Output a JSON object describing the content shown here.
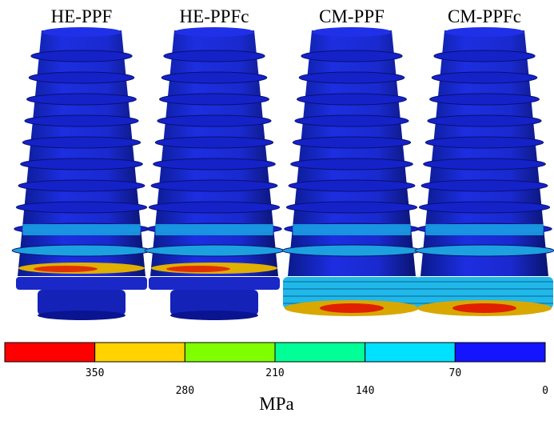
{
  "panels": [
    {
      "label": "HE-PPF"
    },
    {
      "label": "HE-PPFc"
    },
    {
      "label": "CM-PPF"
    },
    {
      "label": "CM-PPFc"
    }
  ],
  "colorbar": {
    "colors": [
      "#ff0000",
      "#ffd200",
      "#80ff00",
      "#00ff96",
      "#00e0ff",
      "#1414ff"
    ],
    "ticks": [
      "350",
      "280",
      "210",
      "140",
      "70",
      "0"
    ],
    "unit": "MPa"
  }
}
